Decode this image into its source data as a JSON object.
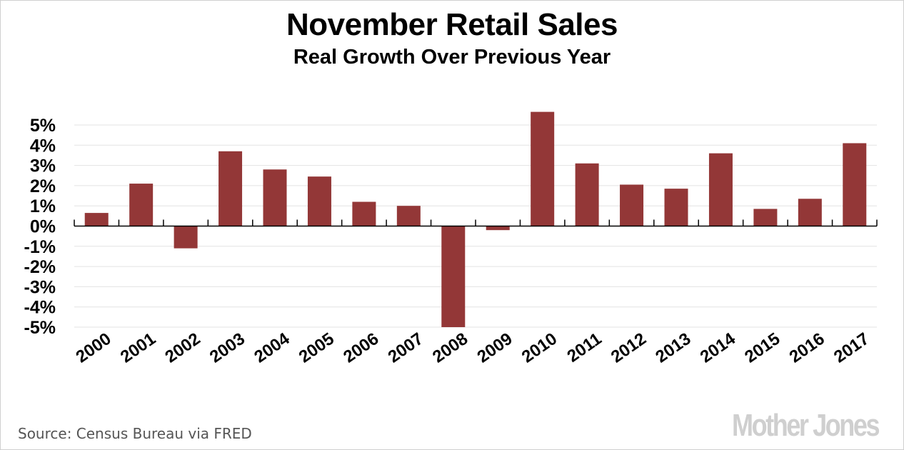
{
  "chart_data": {
    "type": "bar",
    "title": "November Retail Sales",
    "subtitle": "Real Growth Over Previous Year",
    "xlabel": "",
    "ylabel": "",
    "categories": [
      "2000",
      "2001",
      "2002",
      "2003",
      "2004",
      "2005",
      "2006",
      "2007",
      "2008",
      "2009",
      "2010",
      "2011",
      "2012",
      "2013",
      "2014",
      "2015",
      "2016",
      "2017"
    ],
    "values": [
      0.65,
      2.1,
      -1.1,
      3.7,
      2.8,
      2.45,
      1.2,
      1.0,
      -5.0,
      -0.2,
      5.65,
      3.1,
      2.05,
      1.85,
      3.6,
      0.85,
      1.35,
      4.1
    ],
    "ylim": [
      -5,
      5
    ],
    "yticks": [
      5,
      4,
      3,
      2,
      1,
      0,
      -1,
      -2,
      -3,
      -4,
      -5
    ],
    "ytick_labels": [
      "5%",
      "4%",
      "3%",
      "2%",
      "1%",
      "0%",
      "-1%",
      "-2%",
      "-3%",
      "-4%",
      "-5%"
    ],
    "grid": true,
    "bar_color": "#933737",
    "grid_color": "#e3e3e3",
    "legend": "none"
  },
  "footer": {
    "source": "Source: Census Bureau via FRED",
    "logo": "Mother Jones"
  }
}
